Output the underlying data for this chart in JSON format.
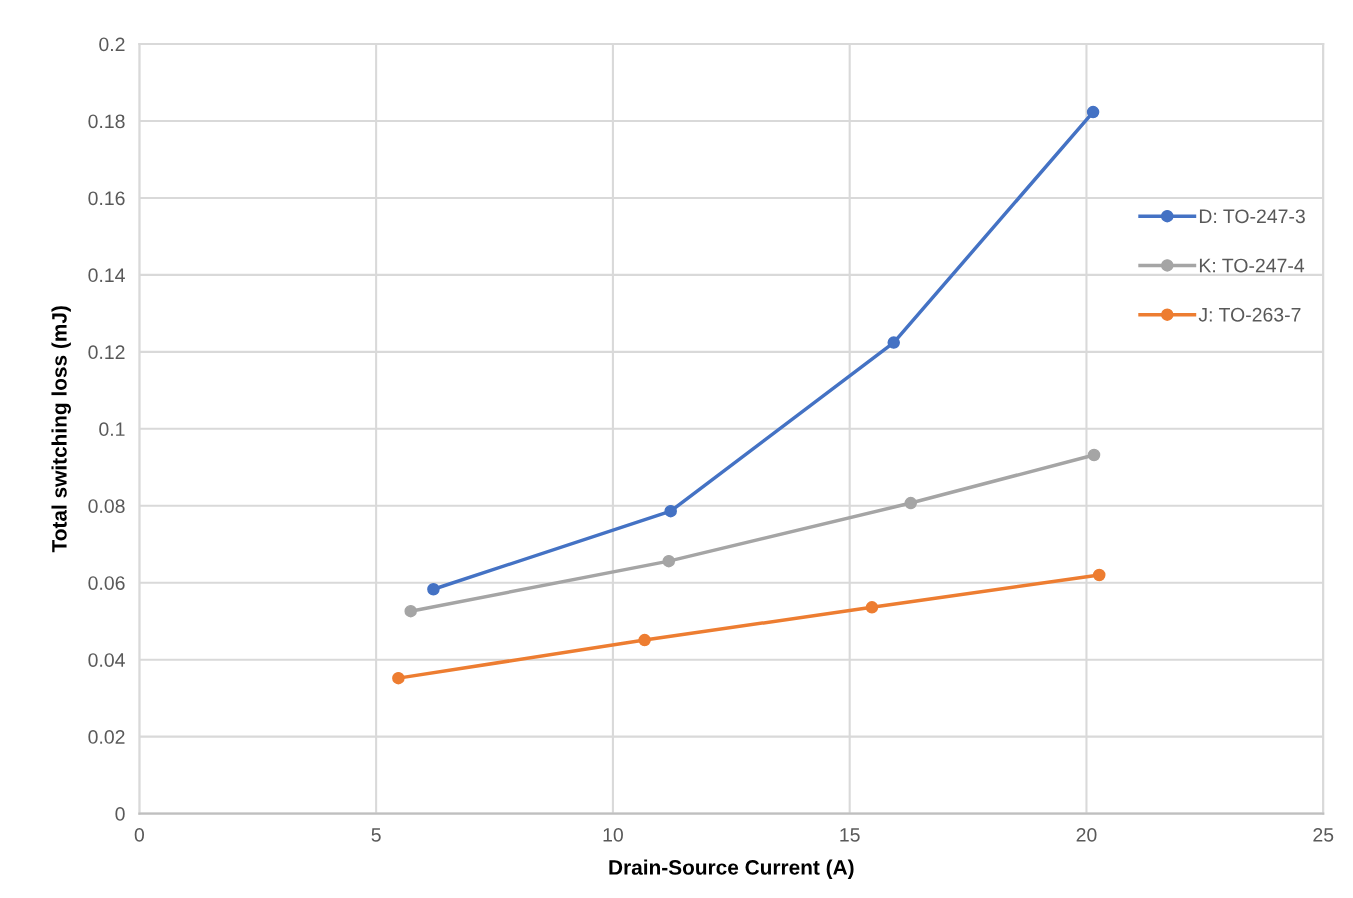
{
  "chart_data": {
    "type": "line",
    "xlabel": "Drain-Source Current (A)",
    "ylabel": "Total switching loss (mJ)",
    "series": [
      {
        "name": "D: TO-247-3",
        "color": "#4472c4",
        "x": [
          6.21,
          11.22,
          15.93,
          20.14
        ],
        "values": [
          0.0583,
          0.0786,
          0.1224,
          0.1823
        ]
      },
      {
        "name": "K: TO-247-4",
        "color": "#a5a5a5",
        "x": [
          5.73,
          11.18,
          16.29,
          20.16
        ],
        "values": [
          0.0526,
          0.0656,
          0.0807,
          0.0932
        ]
      },
      {
        "name": "J: TO-263-7",
        "color": "#ed7d31",
        "x": [
          5.47,
          10.67,
          15.47,
          20.27
        ],
        "values": [
          0.0352,
          0.0451,
          0.0536,
          0.062
        ]
      }
    ],
    "xlim": [
      0,
      25
    ],
    "xticks": [
      0,
      5,
      10,
      15,
      20,
      25
    ],
    "ylim": [
      0,
      0.2
    ],
    "yticks": [
      0,
      0.02,
      0.04,
      0.06,
      0.08,
      0.1,
      0.12,
      0.14,
      0.16,
      0.18,
      0.2
    ],
    "grid": true,
    "legend": "right",
    "marker": "circle",
    "line_style": "solid"
  }
}
